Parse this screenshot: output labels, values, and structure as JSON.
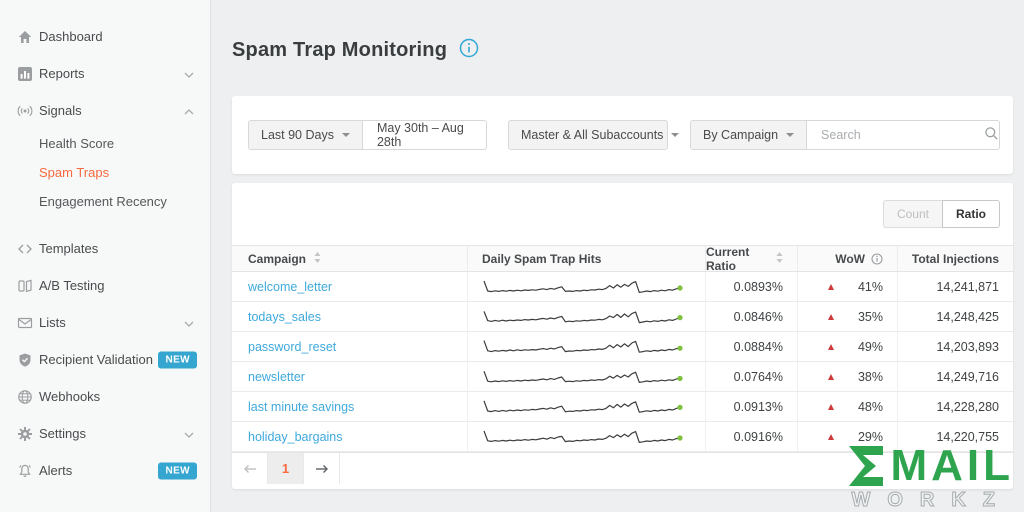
{
  "page": {
    "title": "Spam Trap Monitoring"
  },
  "colors": {
    "accent_orange": "#f7693f",
    "link_blue": "#3fa9dc",
    "badge_blue": "#35a6cf",
    "wow_red": "#ce3a3a",
    "spark_green": "#7fc13d",
    "logo_green": "#2ea44f"
  },
  "sidebar": {
    "items": [
      {
        "label": "Dashboard",
        "icon": "home-icon"
      },
      {
        "label": "Reports",
        "icon": "bar-chart-icon",
        "chevron": "down"
      },
      {
        "label": "Signals",
        "icon": "signal-icon",
        "chevron": "up"
      },
      {
        "label": "Health Score",
        "sub": true
      },
      {
        "label": "Spam Traps",
        "sub": true,
        "active": true
      },
      {
        "label": "Engagement Recency",
        "sub": true
      },
      {
        "label": "Templates",
        "icon": "code-icon"
      },
      {
        "label": "A/B Testing",
        "icon": "ab-test-icon"
      },
      {
        "label": "Lists",
        "icon": "envelope-icon",
        "chevron": "down"
      },
      {
        "label": "Recipient Validation",
        "icon": "shield-icon",
        "badge": "NEW"
      },
      {
        "label": "Webhooks",
        "icon": "globe-icon"
      },
      {
        "label": "Settings",
        "icon": "gear-icon",
        "chevron": "down"
      },
      {
        "label": "Alerts",
        "icon": "bell-icon",
        "badge": "NEW"
      }
    ]
  },
  "filters": {
    "date_preset": "Last 90 Days",
    "date_range": "May 30th – Aug 28th",
    "account_filter": "Master & All Subaccounts",
    "group_by": "By Campaign",
    "search_placeholder": "Search"
  },
  "toggle": {
    "count_label": "Count",
    "ratio_label": "Ratio",
    "active": "Ratio"
  },
  "table": {
    "columns": [
      "Campaign",
      "Daily Spam Trap Hits",
      "Current Ratio",
      "WoW",
      "Total Injections"
    ],
    "rows": [
      {
        "campaign": "welcome_letter",
        "current_ratio": "0.0893%",
        "wow": "41%",
        "wow_direction": "up",
        "total_injections": "14,241,871",
        "sparkline": [
          80,
          30,
          27,
          31,
          28,
          32,
          29,
          33,
          30,
          34,
          31,
          35,
          33,
          36,
          34,
          38,
          41,
          37,
          43,
          39,
          46,
          51,
          28,
          30,
          28,
          32,
          30,
          34,
          32,
          36,
          35,
          39,
          37,
          43,
          57,
          45,
          61,
          49,
          63,
          53,
          69,
          77,
          23,
          26,
          30,
          27,
          32,
          29,
          34,
          31,
          37,
          34,
          41,
          45
        ]
      },
      {
        "campaign": "todays_sales",
        "current_ratio": "0.0846%",
        "wow": "35%",
        "wow_direction": "up",
        "total_injections": "14,248,425",
        "sparkline": [
          78,
          32,
          28,
          33,
          29,
          34,
          30,
          34,
          32,
          35,
          33,
          37,
          35,
          38,
          36,
          40,
          43,
          39,
          45,
          41,
          48,
          53,
          26,
          29,
          27,
          31,
          29,
          33,
          31,
          35,
          34,
          38,
          36,
          42,
          55,
          47,
          63,
          48,
          65,
          51,
          67,
          75,
          22,
          25,
          29,
          26,
          31,
          28,
          33,
          30,
          36,
          33,
          40,
          47
        ]
      },
      {
        "campaign": "password_reset",
        "current_ratio": "0.0884%",
        "wow": "49%",
        "wow_direction": "up",
        "total_injections": "14,203,893",
        "sparkline": [
          82,
          31,
          27,
          32,
          29,
          33,
          30,
          35,
          31,
          36,
          32,
          36,
          34,
          37,
          35,
          39,
          42,
          38,
          44,
          40,
          47,
          52,
          27,
          30,
          29,
          33,
          31,
          35,
          33,
          37,
          36,
          40,
          38,
          44,
          59,
          46,
          62,
          50,
          66,
          52,
          70,
          78,
          24,
          27,
          31,
          28,
          33,
          30,
          35,
          32,
          38,
          35,
          42,
          44
        ]
      },
      {
        "campaign": "newsletter",
        "current_ratio": "0.0764%",
        "wow": "38%",
        "wow_direction": "up",
        "total_injections": "14,249,716",
        "sparkline": [
          79,
          29,
          26,
          30,
          27,
          31,
          28,
          32,
          29,
          33,
          30,
          34,
          32,
          35,
          33,
          37,
          40,
          36,
          42,
          38,
          45,
          50,
          27,
          29,
          27,
          31,
          29,
          33,
          31,
          35,
          33,
          37,
          35,
          41,
          54,
          44,
          58,
          47,
          60,
          50,
          66,
          74,
          23,
          26,
          30,
          27,
          32,
          29,
          34,
          31,
          36,
          33,
          40,
          43
        ]
      },
      {
        "campaign": "last minute savings",
        "current_ratio": "0.0913%",
        "wow": "48%",
        "wow_direction": "up",
        "total_injections": "14,228,280",
        "sparkline": [
          81,
          30,
          27,
          32,
          28,
          33,
          29,
          34,
          31,
          35,
          32,
          36,
          34,
          38,
          36,
          40,
          43,
          39,
          46,
          41,
          49,
          54,
          26,
          29,
          28,
          32,
          30,
          34,
          32,
          36,
          35,
          39,
          37,
          43,
          58,
          46,
          63,
          49,
          65,
          53,
          68,
          76,
          24,
          27,
          31,
          28,
          33,
          30,
          35,
          32,
          38,
          35,
          43,
          48
        ]
      },
      {
        "campaign": "holiday_bargains",
        "current_ratio": "0.0916%",
        "wow": "29%",
        "wow_direction": "up",
        "total_injections": "14,220,755",
        "sparkline": [
          80,
          31,
          28,
          32,
          29,
          33,
          30,
          34,
          31,
          35,
          33,
          37,
          34,
          38,
          36,
          40,
          44,
          39,
          47,
          42,
          50,
          53,
          27,
          30,
          28,
          33,
          31,
          35,
          33,
          37,
          35,
          40,
          38,
          44,
          57,
          47,
          61,
          50,
          64,
          52,
          69,
          77,
          23,
          26,
          30,
          28,
          33,
          30,
          35,
          32,
          38,
          35,
          42,
          45
        ]
      }
    ]
  },
  "pagination": {
    "current_page": "1"
  },
  "watermark": {
    "brand_top": "MAIL",
    "brand_bottom": "WORKZ"
  }
}
